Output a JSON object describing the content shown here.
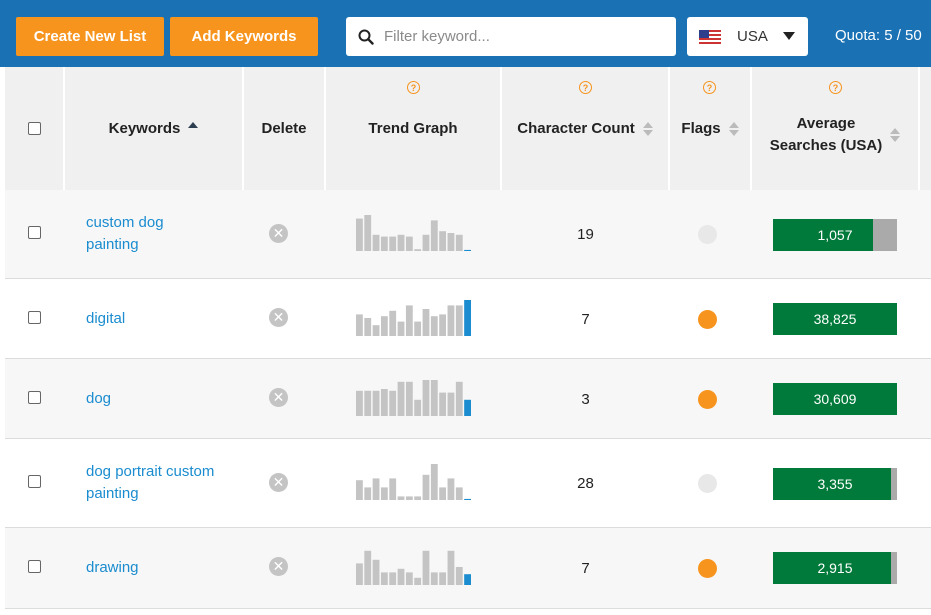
{
  "toolbar": {
    "create_list_label": "Create New List",
    "add_keywords_label": "Add Keywords",
    "filter_placeholder": "Filter keyword...",
    "country": "USA",
    "quota": "Quota: 5 / 50"
  },
  "columns": {
    "keywords": "Keywords",
    "delete": "Delete",
    "trend": "Trend Graph",
    "char_count": "Character Count",
    "flags": "Flags",
    "avg_line1": "Average",
    "avg_line2": "Searches (USA)"
  },
  "colors": {
    "accent": "#f7941d",
    "brand": "#1a72b4",
    "link": "#1a8ccf",
    "avg_fill": "#007a3a",
    "flag_on": "#f7941d",
    "flag_off": "#e8e8e8"
  },
  "rows": [
    {
      "keyword_line1": "custom dog",
      "keyword_line2": "painting",
      "char_count": "19",
      "flagged": false,
      "avg_searches": "1,057",
      "avg_level": 0.81,
      "trend": [
        0.9,
        1.0,
        0.45,
        0.4,
        0.4,
        0.45,
        0.4,
        0.05,
        0.45,
        0.85,
        0.55,
        0.5,
        0.45,
        0.03
      ]
    },
    {
      "keyword_line1": "digital",
      "keyword_line2": "",
      "char_count": "7",
      "flagged": true,
      "avg_searches": "38,825",
      "avg_level": 1.0,
      "trend": [
        0.6,
        0.5,
        0.3,
        0.55,
        0.7,
        0.4,
        0.85,
        0.4,
        0.75,
        0.55,
        0.6,
        0.85,
        0.85,
        1.0
      ]
    },
    {
      "keyword_line1": "dog",
      "keyword_line2": "",
      "char_count": "3",
      "flagged": true,
      "avg_searches": "30,609",
      "avg_level": 1.0,
      "trend": [
        0.7,
        0.7,
        0.7,
        0.75,
        0.7,
        0.95,
        0.95,
        0.45,
        1.0,
        1.0,
        0.65,
        0.65,
        0.95,
        0.45
      ]
    },
    {
      "keyword_line1": "dog portrait custom",
      "keyword_line2": "painting",
      "char_count": "28",
      "flagged": false,
      "avg_searches": "3,355",
      "avg_level": 0.95,
      "trend": [
        0.55,
        0.35,
        0.6,
        0.35,
        0.6,
        0.1,
        0.1,
        0.1,
        0.7,
        1.0,
        0.35,
        0.6,
        0.35,
        0.03
      ]
    },
    {
      "keyword_line1": "drawing",
      "keyword_line2": "",
      "char_count": "7",
      "flagged": true,
      "avg_searches": "2,915",
      "avg_level": 0.95,
      "trend": [
        0.6,
        0.95,
        0.7,
        0.35,
        0.35,
        0.45,
        0.35,
        0.2,
        0.95,
        0.35,
        0.35,
        0.95,
        0.5,
        0.3
      ]
    }
  ]
}
